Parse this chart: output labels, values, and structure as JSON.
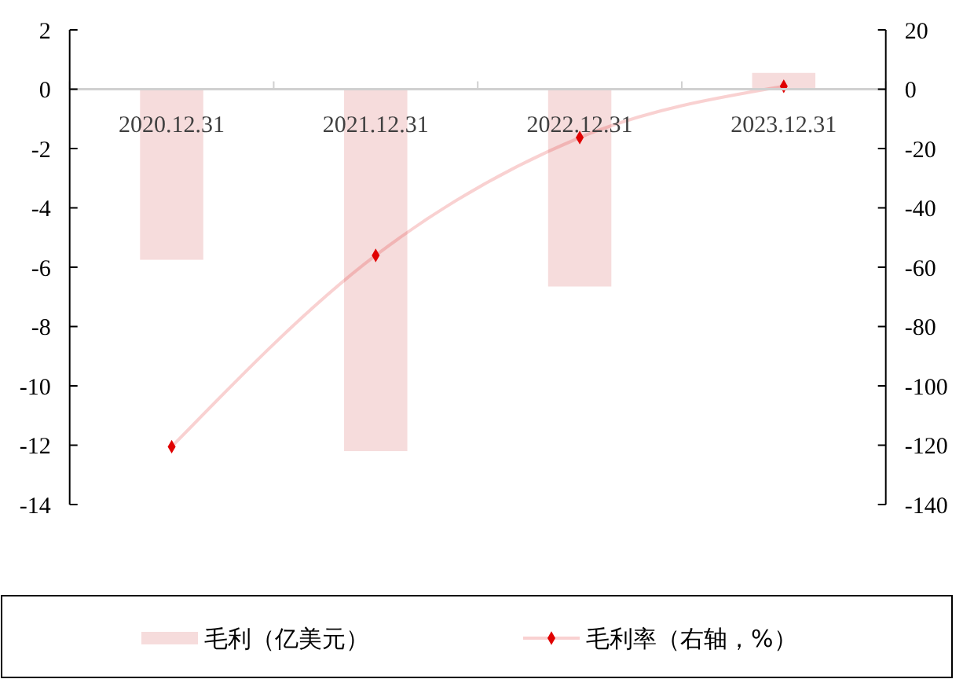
{
  "chart_data": {
    "type": "bar",
    "categories": [
      "2020.12.31",
      "2021.12.31",
      "2022.12.31",
      "2023.12.31"
    ],
    "series": [
      {
        "name": "毛利（亿美元）",
        "color": "#f6dcdc",
        "values": [
          -5.75,
          -12.2,
          -6.65,
          0.55
        ]
      },
      {
        "name": "毛利率（右轴，%）",
        "type": "line",
        "axis": "y2",
        "color": "#e00000",
        "marker": "diamond",
        "values": [
          -120.5,
          -56,
          -16.3,
          1.0
        ]
      }
    ],
    "ylim": [
      -14,
      2
    ],
    "yticks": [
      -14,
      -12,
      -10,
      -8,
      -6,
      -4,
      -2,
      0,
      2
    ],
    "y2lim": [
      -140,
      20
    ],
    "y2ticks": [
      -140,
      -120,
      -100,
      -80,
      -60,
      -40,
      -20,
      0,
      20
    ],
    "legend": "bottom"
  }
}
